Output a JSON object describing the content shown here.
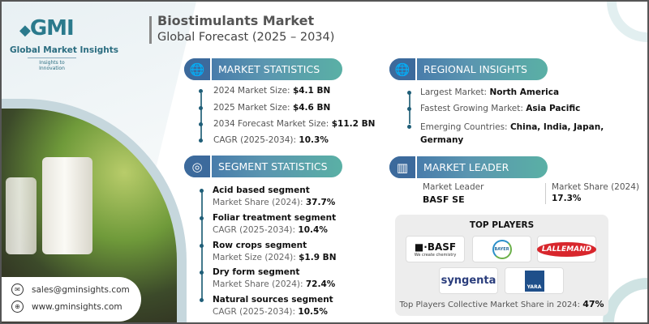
{
  "brand": {
    "logo_text": "GMI",
    "name": "Global Market Insights",
    "tagline": "Insights to Innovation"
  },
  "header": {
    "title": "Biostimulants Market",
    "subtitle": "Global Forecast (2025 – 2034)"
  },
  "market_statistics": {
    "heading": "MARKET STATISTICS",
    "icon": "globe-chart-icon",
    "items": [
      {
        "label": "2024 Market Size:",
        "value": "$4.1 BN"
      },
      {
        "label": "2025 Market Size:",
        "value": "$4.6 BN"
      },
      {
        "label": "2034 Forecast Market Size:",
        "value": "$11.2 BN"
      },
      {
        "label": "CAGR (2025-2034):",
        "value": "10.3%"
      }
    ]
  },
  "segment_statistics": {
    "heading": "SEGMENT STATISTICS",
    "icon": "segment-chart-icon",
    "items": [
      {
        "title": "Acid based segment",
        "label": "Market Share (2024):",
        "value": "37.7%"
      },
      {
        "title": "Foliar treatment segment",
        "label": "CAGR (2025-2034):",
        "value": "10.4%"
      },
      {
        "title": "Row crops segment",
        "label": "Market Size (2024):",
        "value": "$1.9 BN"
      },
      {
        "title": "Dry form segment",
        "label": "Market Share (2024):",
        "value": "72.4%"
      },
      {
        "title": "Natural sources segment",
        "label": "CAGR (2025-2034):",
        "value": "10.5%"
      }
    ]
  },
  "regional_insights": {
    "heading": "REGIONAL INSIGHTS",
    "icon": "globe-icon",
    "items": [
      {
        "label": "Largest Market:",
        "value": "North America"
      },
      {
        "label": "Fastest Growing Market:",
        "value": "Asia Pacific"
      },
      {
        "label": "Emerging Countries:",
        "value": "China, India, Japan, Germany"
      }
    ]
  },
  "market_leader": {
    "heading": "MARKET LEADER",
    "icon": "leader-chart-icon",
    "leader_label": "Market Leader",
    "leader": "BASF SE",
    "share_label": "Market Share (2024)",
    "share": "17.3%"
  },
  "top_players": {
    "heading": "TOP PLAYERS",
    "logos": {
      "basf": "BASF",
      "basf_tag": "We create chemistry",
      "bayer": "BAYER",
      "lallemand": "LALLEMAND",
      "syngenta": "syngenta",
      "yara": "YARA"
    },
    "footer_label": "Top Players Collective Market Share in 2024:",
    "footer_value": "47%"
  },
  "contact": {
    "email": "sales@gminsights.com",
    "website": "www.gminsights.com"
  },
  "colors": {
    "accent": "#3f6fa8",
    "teal": "#5ab0a5",
    "bullet": "#1f5e78"
  }
}
